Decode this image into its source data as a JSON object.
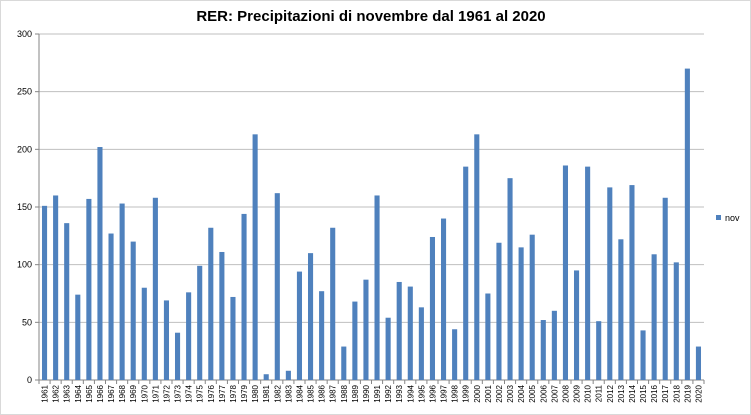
{
  "chart_data": {
    "type": "bar",
    "title": "RER: Precipitazioni di novembre dal 1961 al 2020",
    "xlabel": "",
    "ylabel": "",
    "ylim": [
      0,
      300
    ],
    "yticks": [
      0,
      50,
      100,
      150,
      200,
      250,
      300
    ],
    "grid": true,
    "legend_position": "right",
    "categories": [
      "1961",
      "1962",
      "1963",
      "1964",
      "1965",
      "1966",
      "1967",
      "1968",
      "1969",
      "1970",
      "1971",
      "1972",
      "1973",
      "1974",
      "1975",
      "1976",
      "1977",
      "1978",
      "1979",
      "1980",
      "1981",
      "1982",
      "1983",
      "1984",
      "1985",
      "1986",
      "1987",
      "1988",
      "1989",
      "1990",
      "1991",
      "1992",
      "1993",
      "1994",
      "1995",
      "1996",
      "1997",
      "1998",
      "1999",
      "2000",
      "2001",
      "2002",
      "2003",
      "2004",
      "2005",
      "2006",
      "2007",
      "2008",
      "2009",
      "2010",
      "2011",
      "2012",
      "2013",
      "2014",
      "2015",
      "2016",
      "2017",
      "2018",
      "2019",
      "2020"
    ],
    "series": [
      {
        "name": "nov",
        "color": "#4f81bd",
        "values": [
          151,
          160,
          136,
          74,
          157,
          202,
          127,
          153,
          120,
          80,
          158,
          69,
          41,
          76,
          99,
          132,
          111,
          72,
          144,
          213,
          5,
          162,
          8,
          94,
          110,
          77,
          132,
          29,
          68,
          87,
          160,
          54,
          85,
          81,
          63,
          124,
          140,
          44,
          185,
          213,
          75,
          119,
          175,
          115,
          126,
          52,
          60,
          186,
          95,
          185,
          51,
          167,
          122,
          169,
          43,
          109,
          158,
          102,
          270,
          29
        ]
      }
    ]
  }
}
